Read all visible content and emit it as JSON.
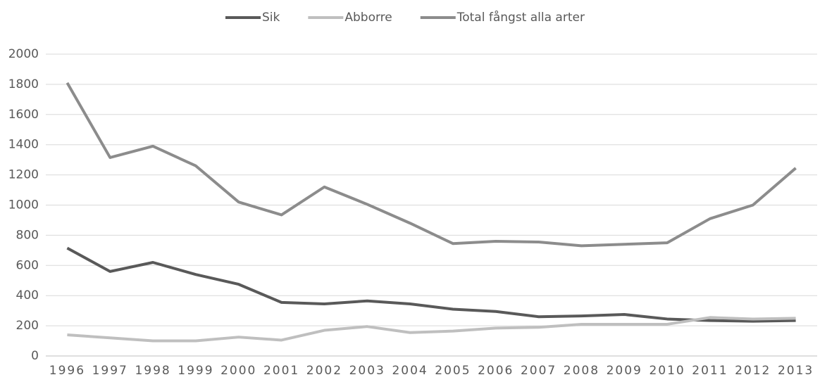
{
  "chart_data": {
    "type": "line",
    "categories": [
      "1996",
      "1997",
      "1998",
      "1999",
      "2000",
      "2001",
      "2002",
      "2003",
      "2004",
      "2005",
      "2006",
      "2007",
      "2008",
      "2009",
      "2010",
      "2011",
      "2012",
      "2013"
    ],
    "series": [
      {
        "name": "Sik",
        "color": "#595959",
        "values": [
          715,
          560,
          620,
          540,
          475,
          355,
          345,
          365,
          345,
          310,
          295,
          260,
          265,
          275,
          245,
          235,
          230,
          235
        ]
      },
      {
        "name": "Abborre",
        "color": "#bfbfbf",
        "values": [
          140,
          120,
          100,
          100,
          125,
          105,
          170,
          195,
          155,
          165,
          185,
          190,
          210,
          210,
          210,
          255,
          245,
          250
        ]
      },
      {
        "name": "Total fångst alla arter",
        "color": "#8c8c8c",
        "values": [
          1810,
          1315,
          1390,
          1260,
          1020,
          935,
          1120,
          1005,
          880,
          745,
          760,
          755,
          730,
          740,
          750,
          910,
          1000,
          1245
        ]
      }
    ],
    "ylim": [
      0,
      2000
    ],
    "yticks": [
      0,
      200,
      400,
      600,
      800,
      1000,
      1200,
      1400,
      1600,
      1800,
      2000
    ],
    "grid": true,
    "legend": "top"
  }
}
